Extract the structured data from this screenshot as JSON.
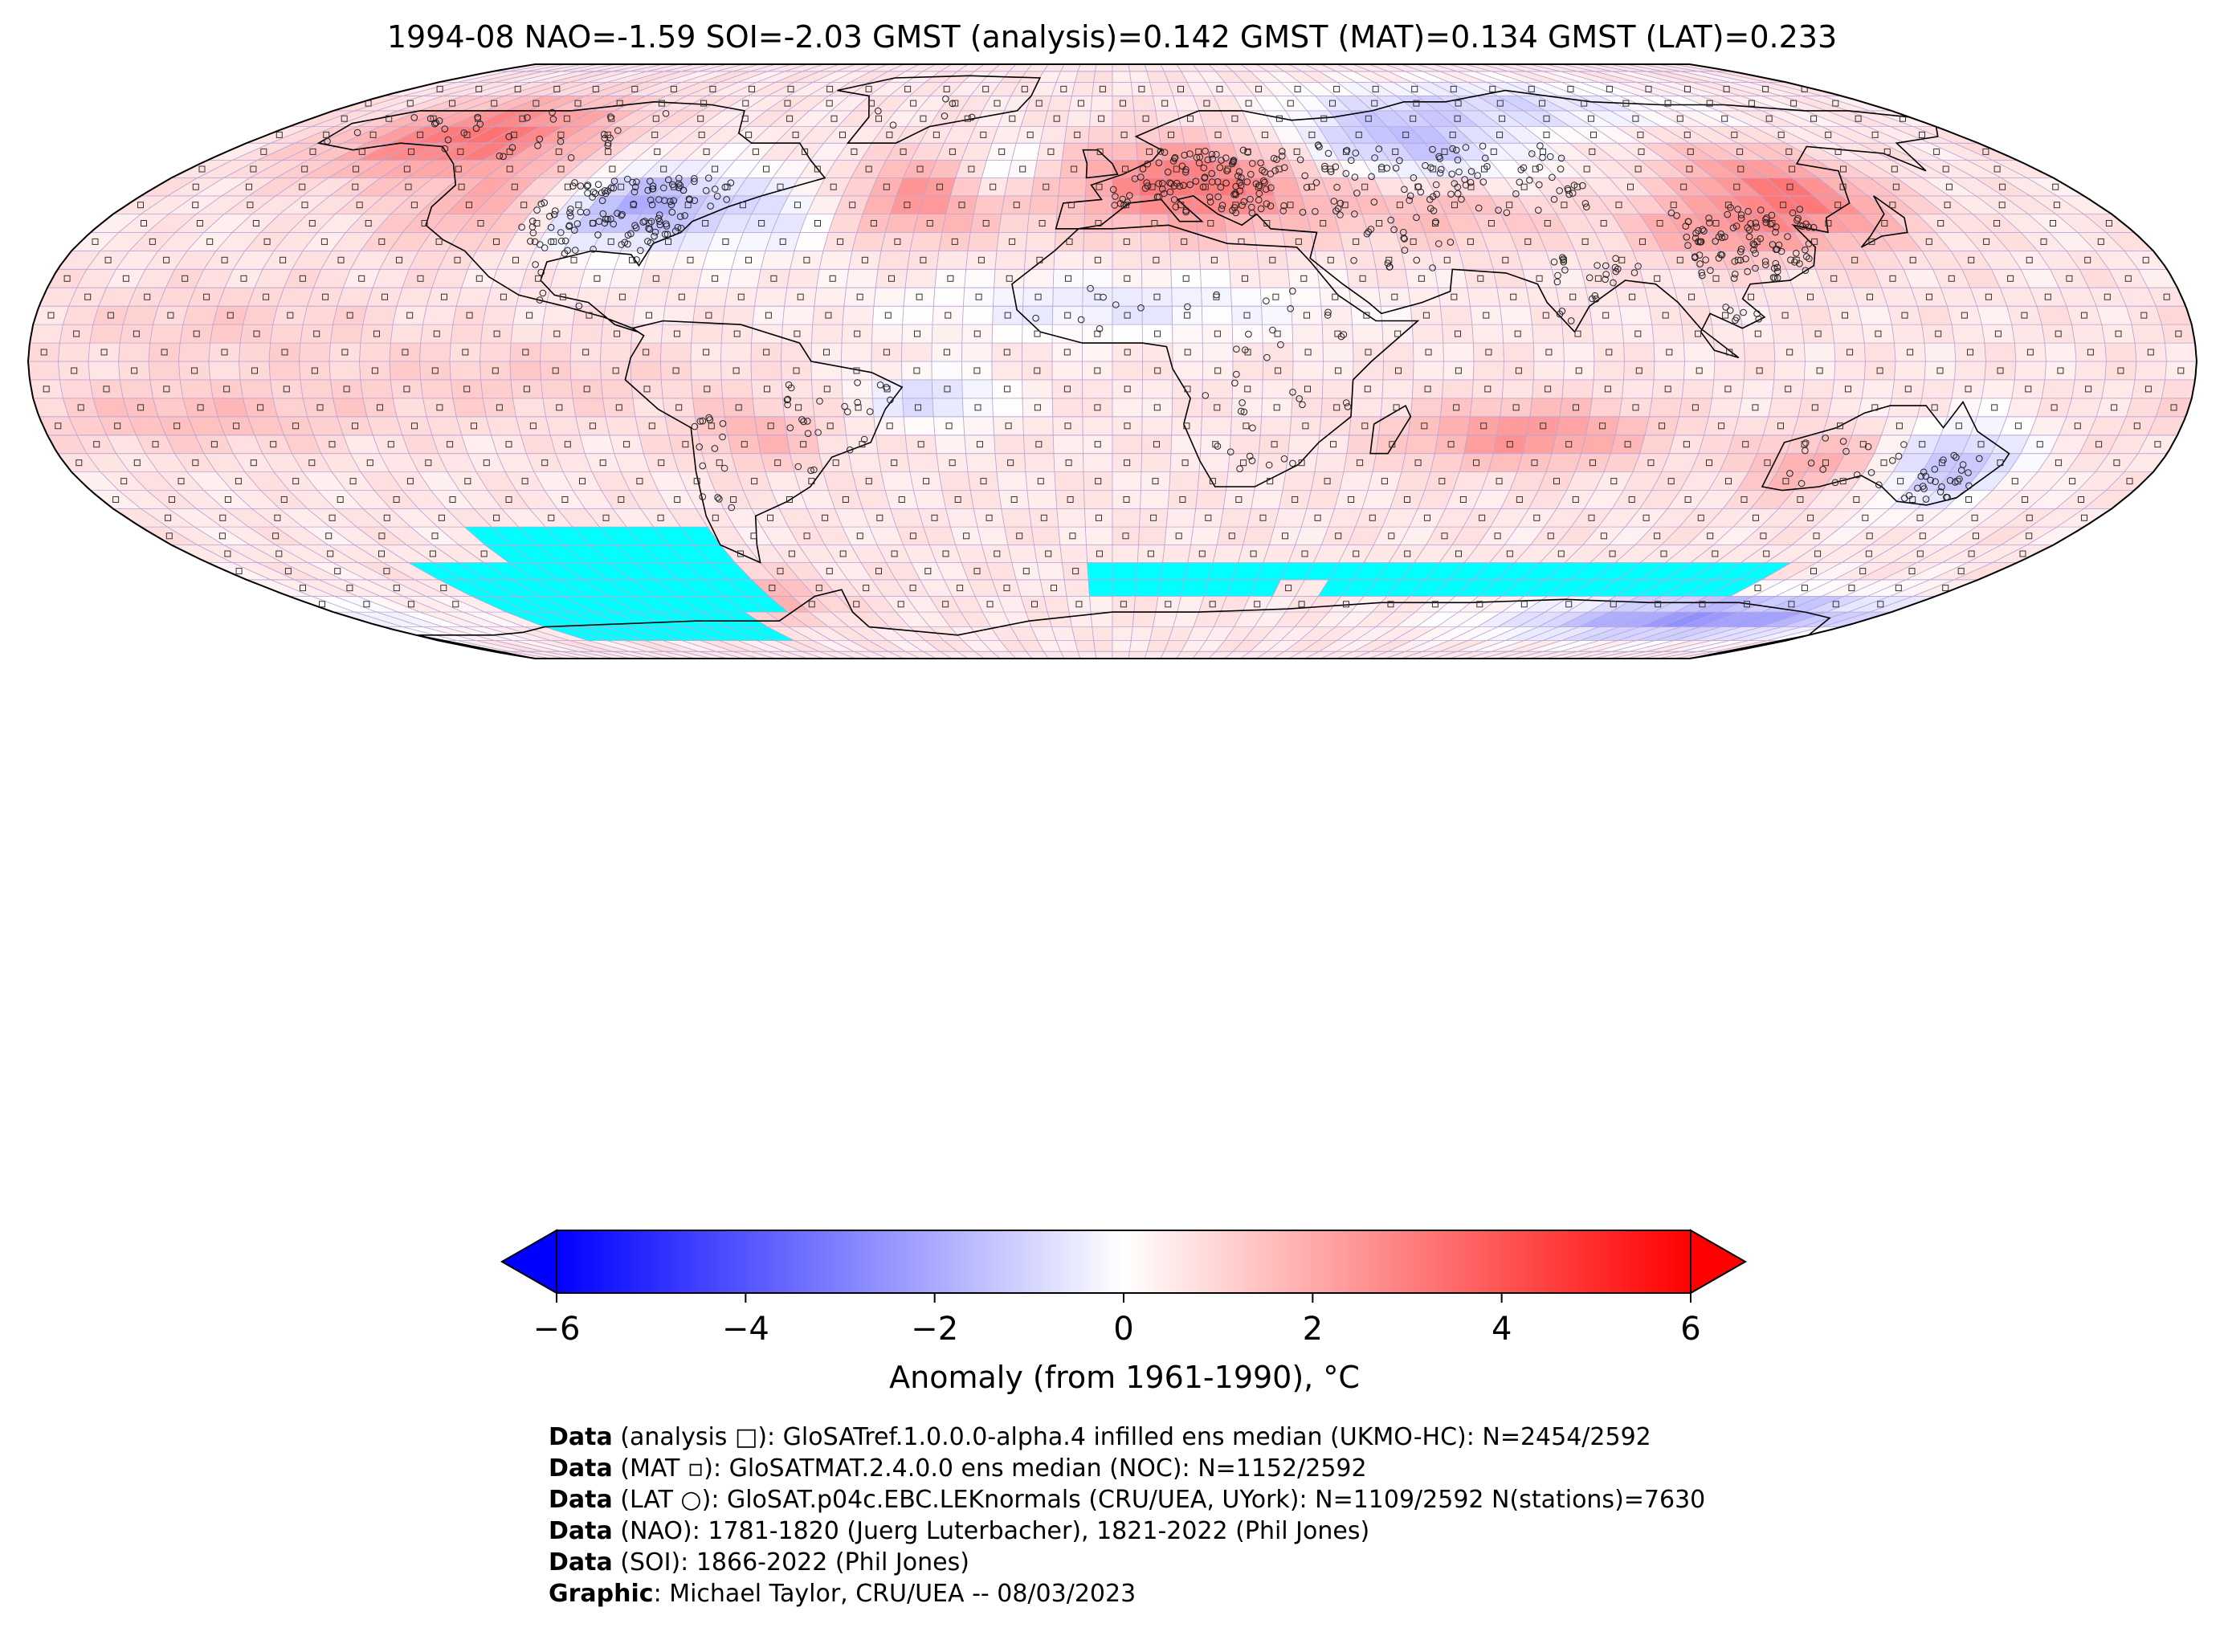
{
  "header": {
    "title": "1994-08 NAO=-1.59 SOI=-2.03 GMST (analysis)=0.142 GMST (MAT)=0.134 GMST (LAT)=0.233"
  },
  "map": {
    "projection": "Robinson",
    "colormap": "bwr",
    "missing_color": "#00ffff",
    "ocean_grid_marker": "square",
    "land_station_marker": "circle",
    "anomaly_regions": [
      {
        "region": "Alaska / NW Canada",
        "anomaly": 3.2
      },
      {
        "region": "Western USA",
        "anomaly": 2.0
      },
      {
        "region": "Eastern USA / Great Lakes",
        "anomaly": -2.0
      },
      {
        "region": "Western Atlantic",
        "anomaly": -1.2
      },
      {
        "region": "Central North Atlantic",
        "anomaly": 2.2
      },
      {
        "region": "Central & Eastern Europe",
        "anomaly": 3.0
      },
      {
        "region": "Western Siberia",
        "anomaly": -1.8
      },
      {
        "region": "Arctic Russia",
        "anomaly": -1.5
      },
      {
        "region": "East Asia / NE China",
        "anomaly": 3.0
      },
      {
        "region": "Central Asia",
        "anomaly": 2.0
      },
      {
        "region": "South Indian Ocean",
        "anomaly": 2.2
      },
      {
        "region": "Western Australia",
        "anomaly": 1.5
      },
      {
        "region": "Eastern Australia",
        "anomaly": -1.8
      },
      {
        "region": "Antarctic coast (Pacific sector)",
        "anomaly": -3.0
      },
      {
        "region": "Tropical Pacific",
        "anomaly": 1.0
      },
      {
        "region": "Southern Ocean (S Atlantic)",
        "anomaly": 1.5
      }
    ]
  },
  "chart_data": {
    "type": "heatmap",
    "title": "1994-08 NAO=-1.59 SOI=-2.03 GMST (analysis)=0.142 GMST (MAT)=0.134 GMST (LAT)=0.233",
    "colorbar_label": "Anomaly (from 1961-1990), °C",
    "colorbar_ticks": [
      "−6",
      "−4",
      "−2",
      "0",
      "2",
      "4",
      "6"
    ],
    "vmin": -6,
    "vmax": 6,
    "extend": "both"
  },
  "colorbar": {
    "ticks": [
      "−6",
      "−4",
      "−2",
      "0",
      "2",
      "4",
      "6"
    ],
    "label": "Anomaly (from 1961-1990), °C"
  },
  "credits": [
    {
      "key": "Data",
      "text": " (analysis □): GloSATref.1.0.0.0-alpha.4 infilled ens median (UKMO-HC): N=2454/2592"
    },
    {
      "key": "Data",
      "text": " (MAT ▫): GloSATMAT.2.4.0.0 ens median (NOC): N=1152/2592"
    },
    {
      "key": "Data",
      "text": " (LAT ○): GloSAT.p04c.EBC.LEKnormals (CRU/UEA, UYork): N=1109/2592 N(stations)=7630"
    },
    {
      "key": "Data",
      "text": " (NAO): 1781-1820 (Juerg Luterbacher), 1821-2022 (Phil Jones)"
    },
    {
      "key": "Data",
      "text": " (SOI): 1866-2022 (Phil Jones)"
    },
    {
      "key": "Graphic",
      "text": ": Michael Taylor, CRU/UEA -- 08/03/2023"
    }
  ]
}
